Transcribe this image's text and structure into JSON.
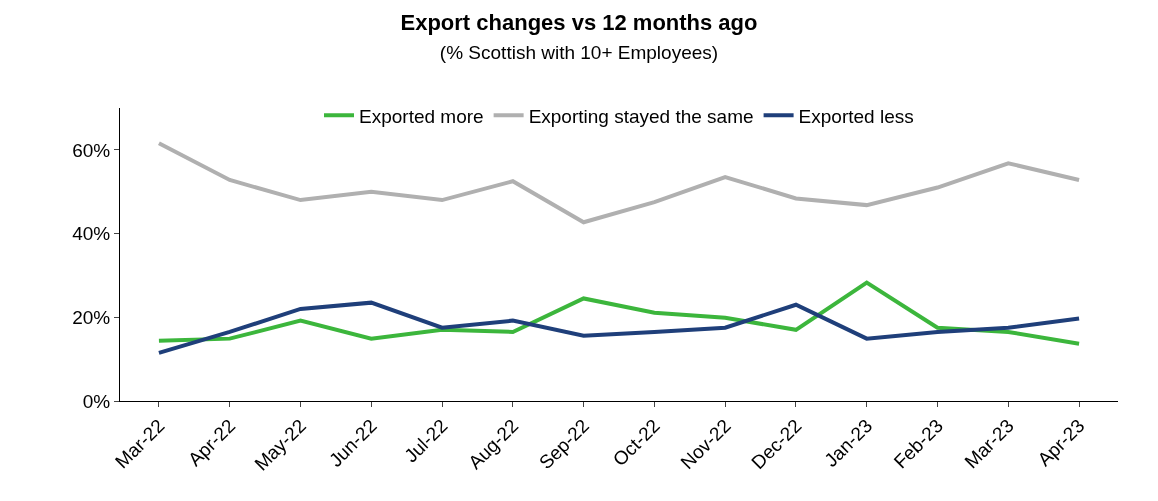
{
  "chart_data": {
    "type": "line",
    "title": "Export changes vs 12 months ago",
    "subtitle": "(% Scottish with 10+ Employees)",
    "categories": [
      "Mar-22",
      "Apr-22",
      "May-22",
      "Jun-22",
      "Jul-22",
      "Aug-22",
      "Sep-22",
      "Oct-22",
      "Nov-22",
      "Dec-22",
      "Jan-23",
      "Feb-23",
      "Mar-23",
      "Apr-23"
    ],
    "series": [
      {
        "name": "Exported more",
        "color": "#3cb63c",
        "values": [
          14.4,
          14.9,
          19.2,
          14.9,
          17,
          16.5,
          24.5,
          21.1,
          19.9,
          17,
          28.3,
          17.5,
          16.5,
          13.7
        ]
      },
      {
        "name": "Exporting stayed the same",
        "color": "#b0b0b0",
        "values": [
          61.6,
          52.8,
          48,
          50,
          48,
          52.5,
          42.7,
          47.5,
          53.5,
          48.4,
          46.8,
          51,
          56.8,
          52.8
        ]
      },
      {
        "name": "Exported less",
        "color": "#1f3f7a",
        "values": [
          11.5,
          16.5,
          22,
          23.5,
          17.5,
          19.2,
          15.6,
          16.5,
          17.5,
          23,
          14.9,
          16.5,
          17.5,
          19.7
        ]
      }
    ],
    "ylim": [
      0,
      70
    ],
    "yticks": [
      {
        "value": 0,
        "label": "0%"
      },
      {
        "value": 20,
        "label": "20%"
      },
      {
        "value": 40,
        "label": "40%"
      },
      {
        "value": 60,
        "label": "60%"
      }
    ],
    "legend": "top",
    "marker": "none",
    "line_style": "solid"
  }
}
